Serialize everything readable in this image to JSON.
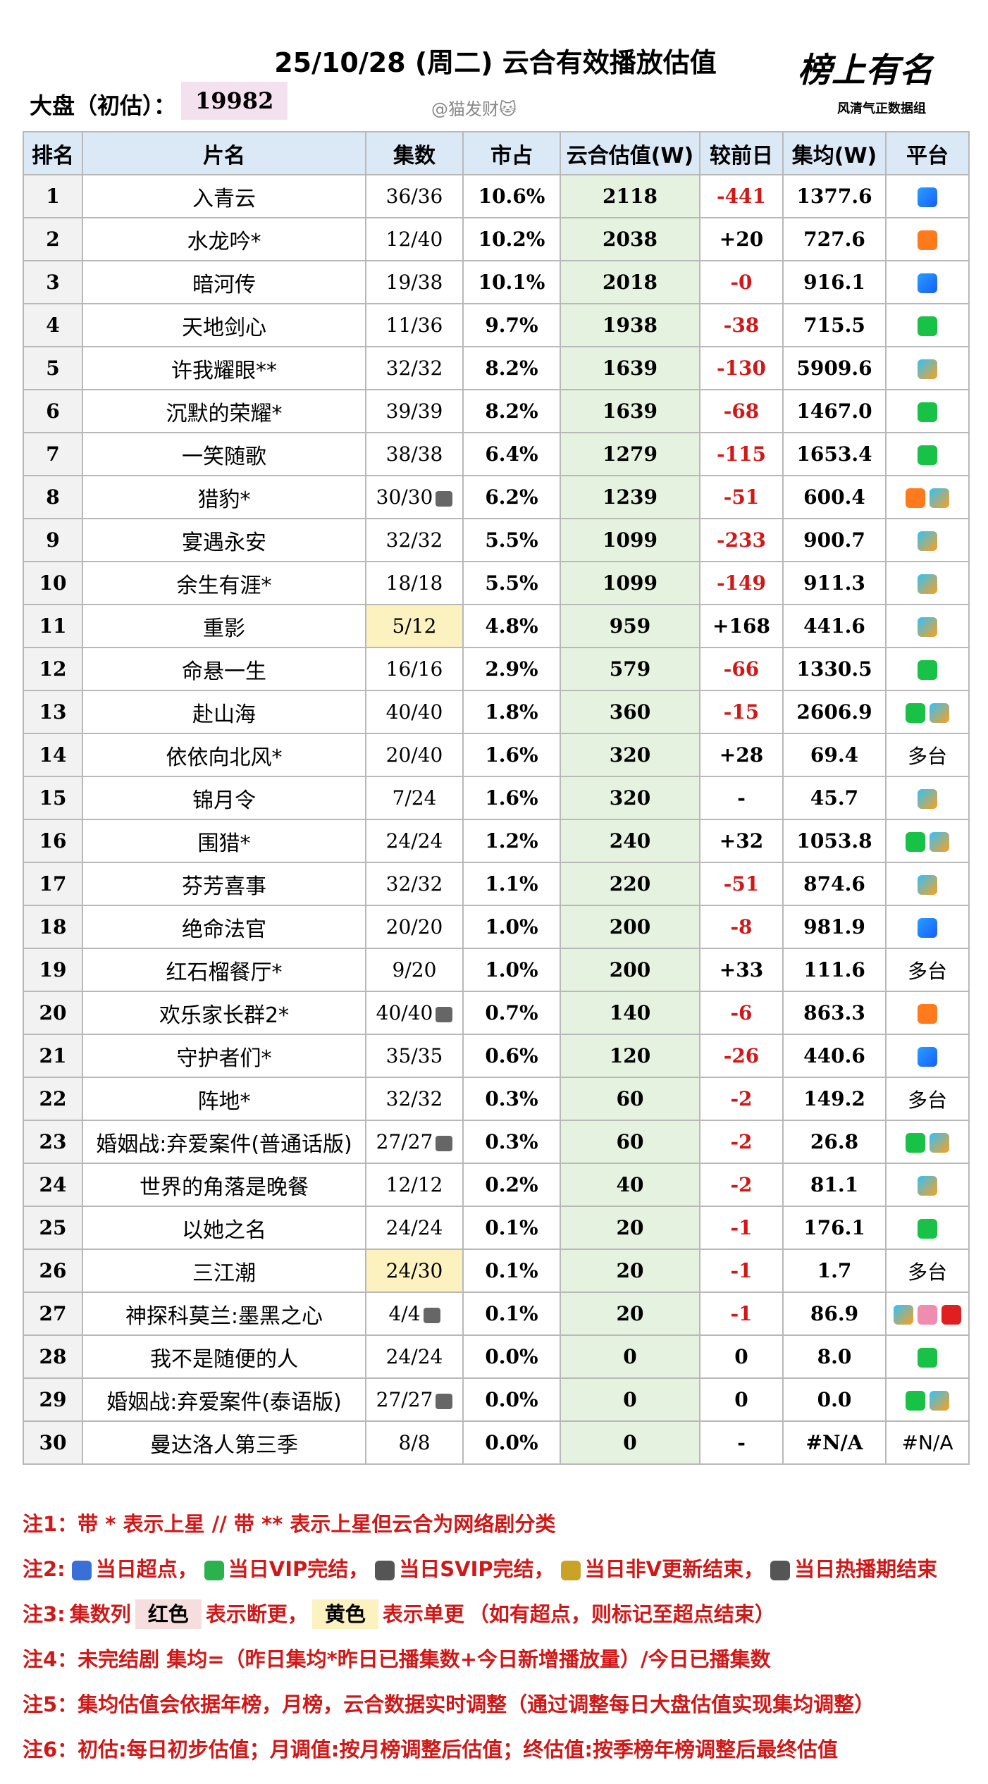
{
  "header": {
    "title": "25/10/28 (周二) 云合有效播放估值",
    "market_label": "大盘（初估）：",
    "market_value": "19982",
    "author": "@猫发财🐱",
    "logo": "榜上有名",
    "logo_sub": "风清气正数据组"
  },
  "table": {
    "columns": [
      "排名",
      "片名",
      "集数",
      "市占",
      "云合估值(W)",
      "较前日",
      "集均(W)",
      "平台"
    ],
    "rows": [
      [
        "1",
        "入青云",
        "36/36",
        "10.6%",
        "2118",
        "-441",
        "1377.6"
      ],
      [
        "2",
        "水龙吟*",
        "12/40",
        "10.2%",
        "2038",
        "+20",
        "727.6"
      ],
      [
        "3",
        "暗河传",
        "19/38",
        "10.1%",
        "2018",
        "-0",
        "916.1"
      ],
      [
        "4",
        "天地剑心",
        "11/36",
        "9.7%",
        "1938",
        "-38",
        "715.5"
      ],
      [
        "5",
        "许我耀眼**",
        "32/32",
        "8.2%",
        "1639",
        "-130",
        "5909.6"
      ],
      [
        "6",
        "沉默的荣耀*",
        "39/39",
        "8.2%",
        "1639",
        "-68",
        "1467.0"
      ],
      [
        "7",
        "一笑随歌",
        "38/38",
        "6.4%",
        "1279",
        "-115",
        "1653.4"
      ],
      [
        "8",
        "猎豹*",
        "30/30",
        "6.2%",
        "1239",
        "-51",
        "600.4"
      ],
      [
        "9",
        "宴遇永安",
        "32/32",
        "5.5%",
        "1099",
        "-233",
        "900.7"
      ],
      [
        "10",
        "余生有涯*",
        "18/18",
        "5.5%",
        "1099",
        "-149",
        "911.3"
      ],
      [
        "11",
        "重影",
        "5/12",
        "4.8%",
        "959",
        "+168",
        "441.6"
      ],
      [
        "12",
        "命悬一生",
        "16/16",
        "2.9%",
        "579",
        "-66",
        "1330.5"
      ],
      [
        "13",
        "赴山海",
        "40/40",
        "1.8%",
        "360",
        "-15",
        "2606.9"
      ],
      [
        "14",
        "依依向北风*",
        "20/40",
        "1.6%",
        "320",
        "+28",
        "69.4",
        "多台"
      ],
      [
        "15",
        "锦月令",
        "7/24",
        "1.6%",
        "320",
        "-",
        "45.7"
      ],
      [
        "16",
        "围猎*",
        "24/24",
        "1.2%",
        "240",
        "+32",
        "1053.8"
      ],
      [
        "17",
        "芬芳喜事",
        "32/32",
        "1.1%",
        "220",
        "-51",
        "874.6"
      ],
      [
        "18",
        "绝命法官",
        "20/20",
        "1.0%",
        "200",
        "-8",
        "981.9"
      ],
      [
        "19",
        "红石榴餐厅*",
        "9/20",
        "1.0%",
        "200",
        "+33",
        "111.6",
        "多台"
      ],
      [
        "20",
        "欢乐家长群2*",
        "40/40",
        "0.7%",
        "140",
        "-6",
        "863.3"
      ],
      [
        "21",
        "守护者们*",
        "35/35",
        "0.6%",
        "120",
        "-26",
        "440.6"
      ],
      [
        "22",
        "阵地*",
        "32/32",
        "0.3%",
        "60",
        "-2",
        "149.2",
        "多台"
      ],
      [
        "23",
        "婚姻战:弃爱案件(普通话版)",
        "27/27",
        "0.3%",
        "60",
        "-2",
        "26.8"
      ],
      [
        "24",
        "世界的角落是晚餐",
        "12/12",
        "0.2%",
        "40",
        "-2",
        "81.1"
      ],
      [
        "25",
        "以她之名",
        "24/24",
        "0.1%",
        "20",
        "-1",
        "176.1"
      ],
      [
        "26",
        "三江潮",
        "24/30",
        "0.1%",
        "20",
        "-1",
        "1.7",
        "多台"
      ],
      [
        "27",
        "神探科莫兰:墨黑之心",
        "4/4",
        "0.1%",
        "20",
        "-1",
        "86.9"
      ],
      [
        "28",
        "我不是随便的人",
        "24/24",
        "0.0%",
        "0",
        "0",
        "8.0"
      ],
      [
        "29",
        "婚姻战:弃爱案件(泰语版)",
        "27/27",
        "0.0%",
        "0",
        "0",
        "0.0"
      ],
      [
        "30",
        "曼达洛人第三季",
        "8/8",
        "0.0%",
        "0",
        "-",
        "#N/A",
        "#N/A"
      ]
    ]
  },
  "notes": [
    [
      "注1：带 * 表示上星 // 带 ** 表示上星但云合为网络剧分类"
    ],
    [
      "注2:",
      "当日超点，",
      "当日VIP完结，",
      "当日SVIP完结，",
      "当日非V更新结束，",
      "当日热播期结束"
    ],
    [
      "注3:",
      "集数列",
      "红色",
      "表示断更，",
      "黄色",
      "表示单更",
      "（如有超点，则标记至超点结束）"
    ],
    [
      "注4：未完结剧 集均=（昨日集均*昨日已播集数+今日新增播放量）/今日已播集数"
    ],
    [
      "注5：集均估值会依据年榜，月榜，云合数据实时调整（通过调整每日大盘估值实现集均调整）"
    ],
    [
      "注6：初估:每日初步估值；月调值:按月榜调整后估值；终估值:按季榜年榜调整后最终估值"
    ]
  ]
}
